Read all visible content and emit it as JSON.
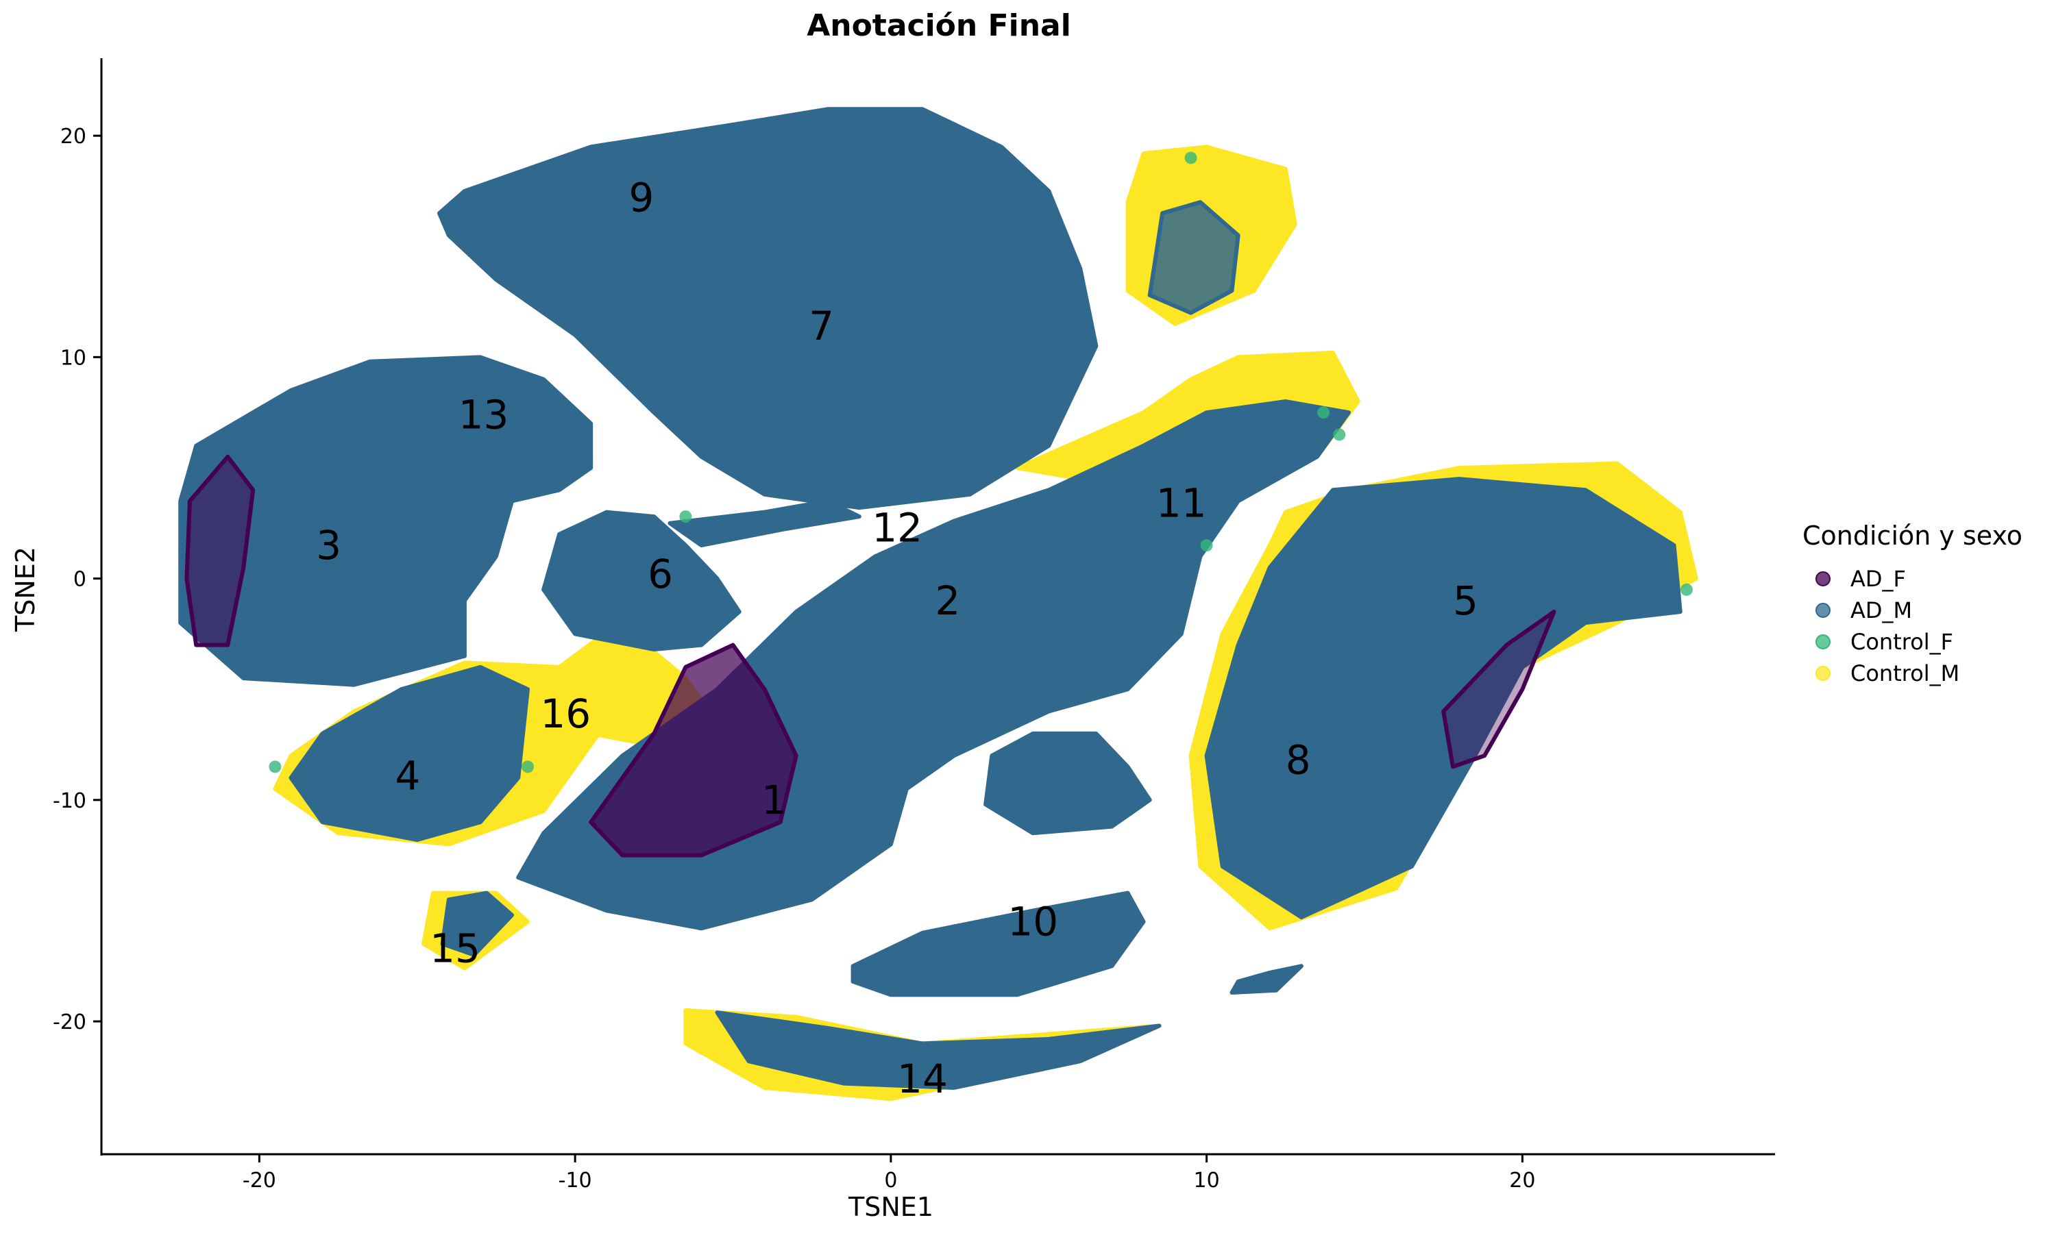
{
  "chart_data": {
    "type": "scatter",
    "title": "Anotación Final",
    "xlabel": "TSNE1",
    "ylabel": "TSNE2",
    "xlim": [
      -25,
      28
    ],
    "ylim": [
      -26,
      23.5
    ],
    "xticks": [
      -20,
      -10,
      0,
      10,
      20
    ],
    "yticks": [
      -20,
      -10,
      0,
      10,
      20
    ],
    "grid": false,
    "legend": {
      "title": "Condición y sexo",
      "placement": "right",
      "entries": [
        {
          "name": "AD_F",
          "color": "#440154"
        },
        {
          "name": "AD_M",
          "color": "#31688E"
        },
        {
          "name": "Control_F",
          "color": "#35B779"
        },
        {
          "name": "Control_M",
          "color": "#FDE725"
        }
      ]
    },
    "clusters": [
      {
        "label": "1",
        "x": -3.7,
        "y": -10.0
      },
      {
        "label": "2",
        "x": 1.8,
        "y": -1.0
      },
      {
        "label": "3",
        "x": -17.8,
        "y": 1.5
      },
      {
        "label": "4",
        "x": -15.3,
        "y": -8.9
      },
      {
        "label": "5",
        "x": 18.2,
        "y": -1.0
      },
      {
        "label": "6",
        "x": -7.3,
        "y": 0.2
      },
      {
        "label": "7",
        "x": -2.2,
        "y": 11.4
      },
      {
        "label": "8",
        "x": 12.9,
        "y": -8.2
      },
      {
        "label": "9",
        "x": -7.9,
        "y": 17.2
      },
      {
        "label": "10",
        "x": 4.5,
        "y": -15.5
      },
      {
        "label": "11",
        "x": 9.2,
        "y": 3.4
      },
      {
        "label": "12",
        "x": 0.2,
        "y": 2.3
      },
      {
        "label": "13",
        "x": -12.9,
        "y": 7.4
      },
      {
        "label": "14",
        "x": 1.0,
        "y": -22.6
      },
      {
        "label": "15",
        "x": -13.8,
        "y": -16.7
      },
      {
        "label": "16",
        "x": -10.3,
        "y": -6.1
      }
    ]
  }
}
